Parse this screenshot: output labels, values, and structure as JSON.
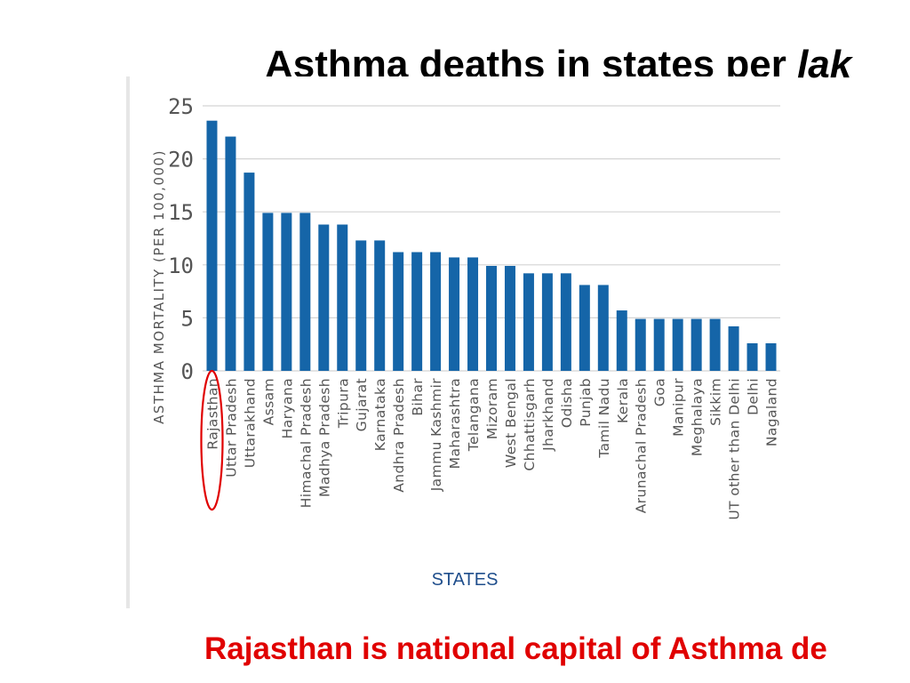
{
  "slide": {
    "title_main": "Asthma deaths in states per ",
    "title_italic": "lak",
    "caption": "Rajasthan is national capital of  Asthma de"
  },
  "colors": {
    "bar": "#1565a8",
    "highlight": "#e00000",
    "axis_text": "#555555",
    "grid": "#d4d4d4",
    "xlabel": "#1f4e8c"
  },
  "chart_data": {
    "type": "bar",
    "title": "",
    "xlabel": "STATES",
    "ylabel": "ASTHMA MORTALITY (PER 100,000)",
    "ylim": [
      0,
      25
    ],
    "yticks": [
      0,
      5,
      10,
      15,
      20,
      25
    ],
    "grid": true,
    "highlighted_category": "Rajasthan",
    "categories": [
      "Rajasthan",
      "Uttar Pradesh",
      "Uttarakhand",
      "Assam",
      "Haryana",
      "Himachal Pradesh",
      "Madhya Pradesh",
      "Tripura",
      "Gujarat",
      "Karnataka",
      "Andhra Pradesh",
      "Bihar",
      "Jammu Kashmir",
      "Maharashtra",
      "Telangana",
      "Mizoram",
      "West Bengal",
      "Chhattisgarh",
      "Jharkhand",
      "Odisha",
      "Punjab",
      "Tamil Nadu",
      "Kerala",
      "Arunachal Pradesh",
      "Goa",
      "Manipur",
      "Meghalaya",
      "Sikkim",
      "UT other than Delhi",
      "Delhi",
      "Nagaland"
    ],
    "values": [
      23.6,
      22.1,
      18.7,
      14.9,
      14.9,
      14.9,
      13.8,
      13.8,
      12.3,
      12.3,
      11.2,
      11.2,
      11.2,
      10.7,
      10.7,
      9.9,
      9.9,
      9.2,
      9.2,
      9.2,
      8.1,
      8.1,
      5.7,
      4.9,
      4.9,
      4.9,
      4.9,
      4.9,
      4.2,
      2.6,
      2.6
    ]
  }
}
